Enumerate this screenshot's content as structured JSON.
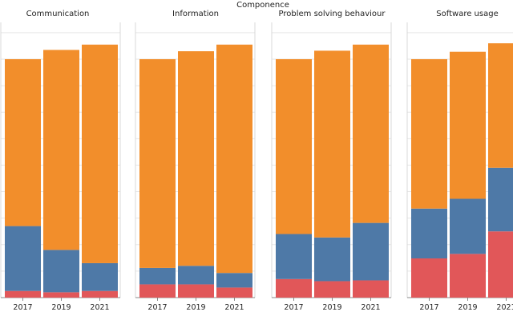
{
  "chart_data": {
    "type": "bar",
    "stacked": true,
    "facet_title": "Componence",
    "categories": [
      "2017",
      "2019",
      "2021"
    ],
    "ylim": [
      0,
      100
    ],
    "grid": true,
    "colors": {
      "bottom": "#e15759",
      "middle": "#4e79a7",
      "top": "#f28e2b"
    },
    "facets": [
      {
        "title": "Communication",
        "totals": [
          90,
          93.5,
          95.5
        ],
        "stack": [
          {
            "values": [
              2.5,
              2.0,
              2.5
            ]
          },
          {
            "values": [
              24.5,
              16.0,
              10.5
            ]
          },
          {
            "values": [
              63.0,
              75.5,
              82.5
            ]
          }
        ]
      },
      {
        "title": "Information",
        "totals": [
          90,
          93.0,
          95.5
        ],
        "stack": [
          {
            "values": [
              5.0,
              5.0,
              3.8
            ]
          },
          {
            "values": [
              6.2,
              7.0,
              5.5
            ]
          },
          {
            "values": [
              78.8,
              81.0,
              86.2
            ]
          }
        ]
      },
      {
        "title": "Problem solving behaviour",
        "totals": [
          90,
          93.2,
          95.5
        ],
        "stack": [
          {
            "values": [
              7.0,
              6.2,
              6.5
            ]
          },
          {
            "values": [
              17.0,
              16.5,
              21.7
            ]
          },
          {
            "values": [
              66.0,
              70.5,
              67.3
            ]
          }
        ]
      },
      {
        "title": "Software usage",
        "totals": [
          90,
          92.8,
          96.0
        ],
        "stack": [
          {
            "values": [
              14.8,
              16.5,
              25.0
            ]
          },
          {
            "values": [
              18.8,
              20.8,
              24.0
            ]
          },
          {
            "values": [
              56.4,
              55.5,
              47.0
            ]
          }
        ]
      }
    ]
  }
}
